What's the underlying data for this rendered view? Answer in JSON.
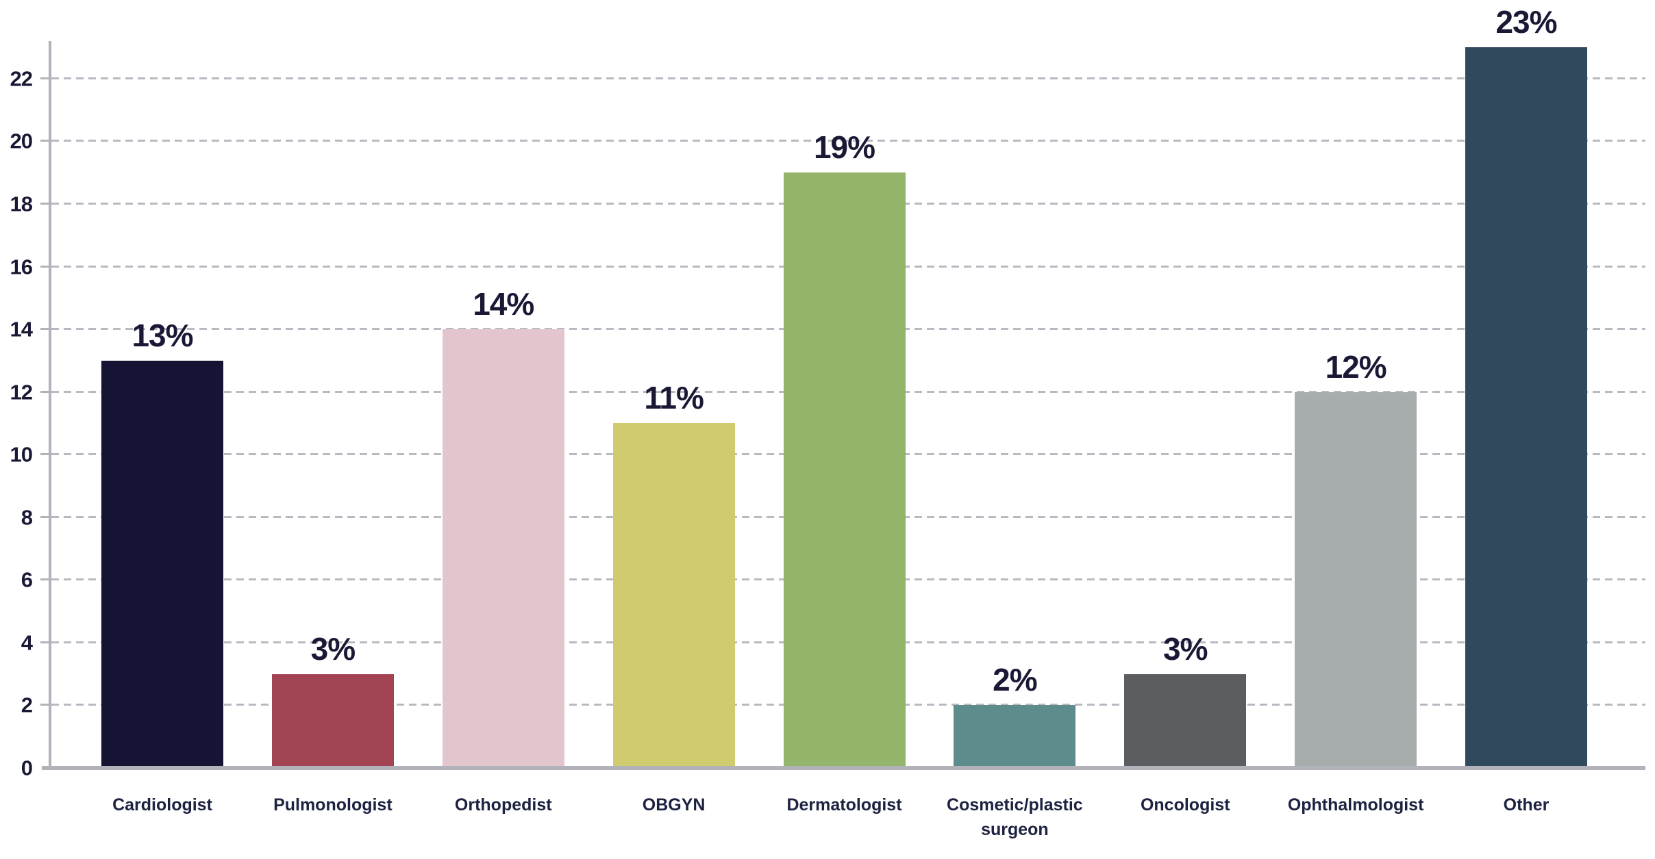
{
  "chart_data": {
    "type": "bar",
    "title": "",
    "xlabel": "",
    "ylabel": "",
    "categories": [
      "Cardiologist",
      "Pulmonologist",
      "Orthopedist",
      "OBGYN",
      "Dermatologist",
      "Cosmetic/plastic\nsurgeon",
      "Oncologist",
      "Ophthalmologist",
      "Other"
    ],
    "values": [
      13,
      3,
      14,
      11,
      19,
      2,
      3,
      12,
      23
    ],
    "value_labels": [
      "13%",
      "3%",
      "14%",
      "11%",
      "19%",
      "2%",
      "3%",
      "12%",
      "23%"
    ],
    "bar_colors": [
      "#161434",
      "#a34455",
      "#e3c6cd",
      "#cfcb6e",
      "#93b46a",
      "#5e8b8b",
      "#5b5d61",
      "#a7adad",
      "#31495d"
    ],
    "yticks": [
      0,
      2,
      4,
      6,
      8,
      10,
      12,
      14,
      16,
      18,
      20,
      22
    ],
    "ylim": [
      0,
      23.2
    ],
    "grid": "horizontal-dashed",
    "legend": "none",
    "colors": {
      "value_label_text": "#191936",
      "category_text": "#1c2240",
      "axis": "#b2b2ba",
      "gridline": "#b9b9c1",
      "background": "#ffffff"
    }
  }
}
